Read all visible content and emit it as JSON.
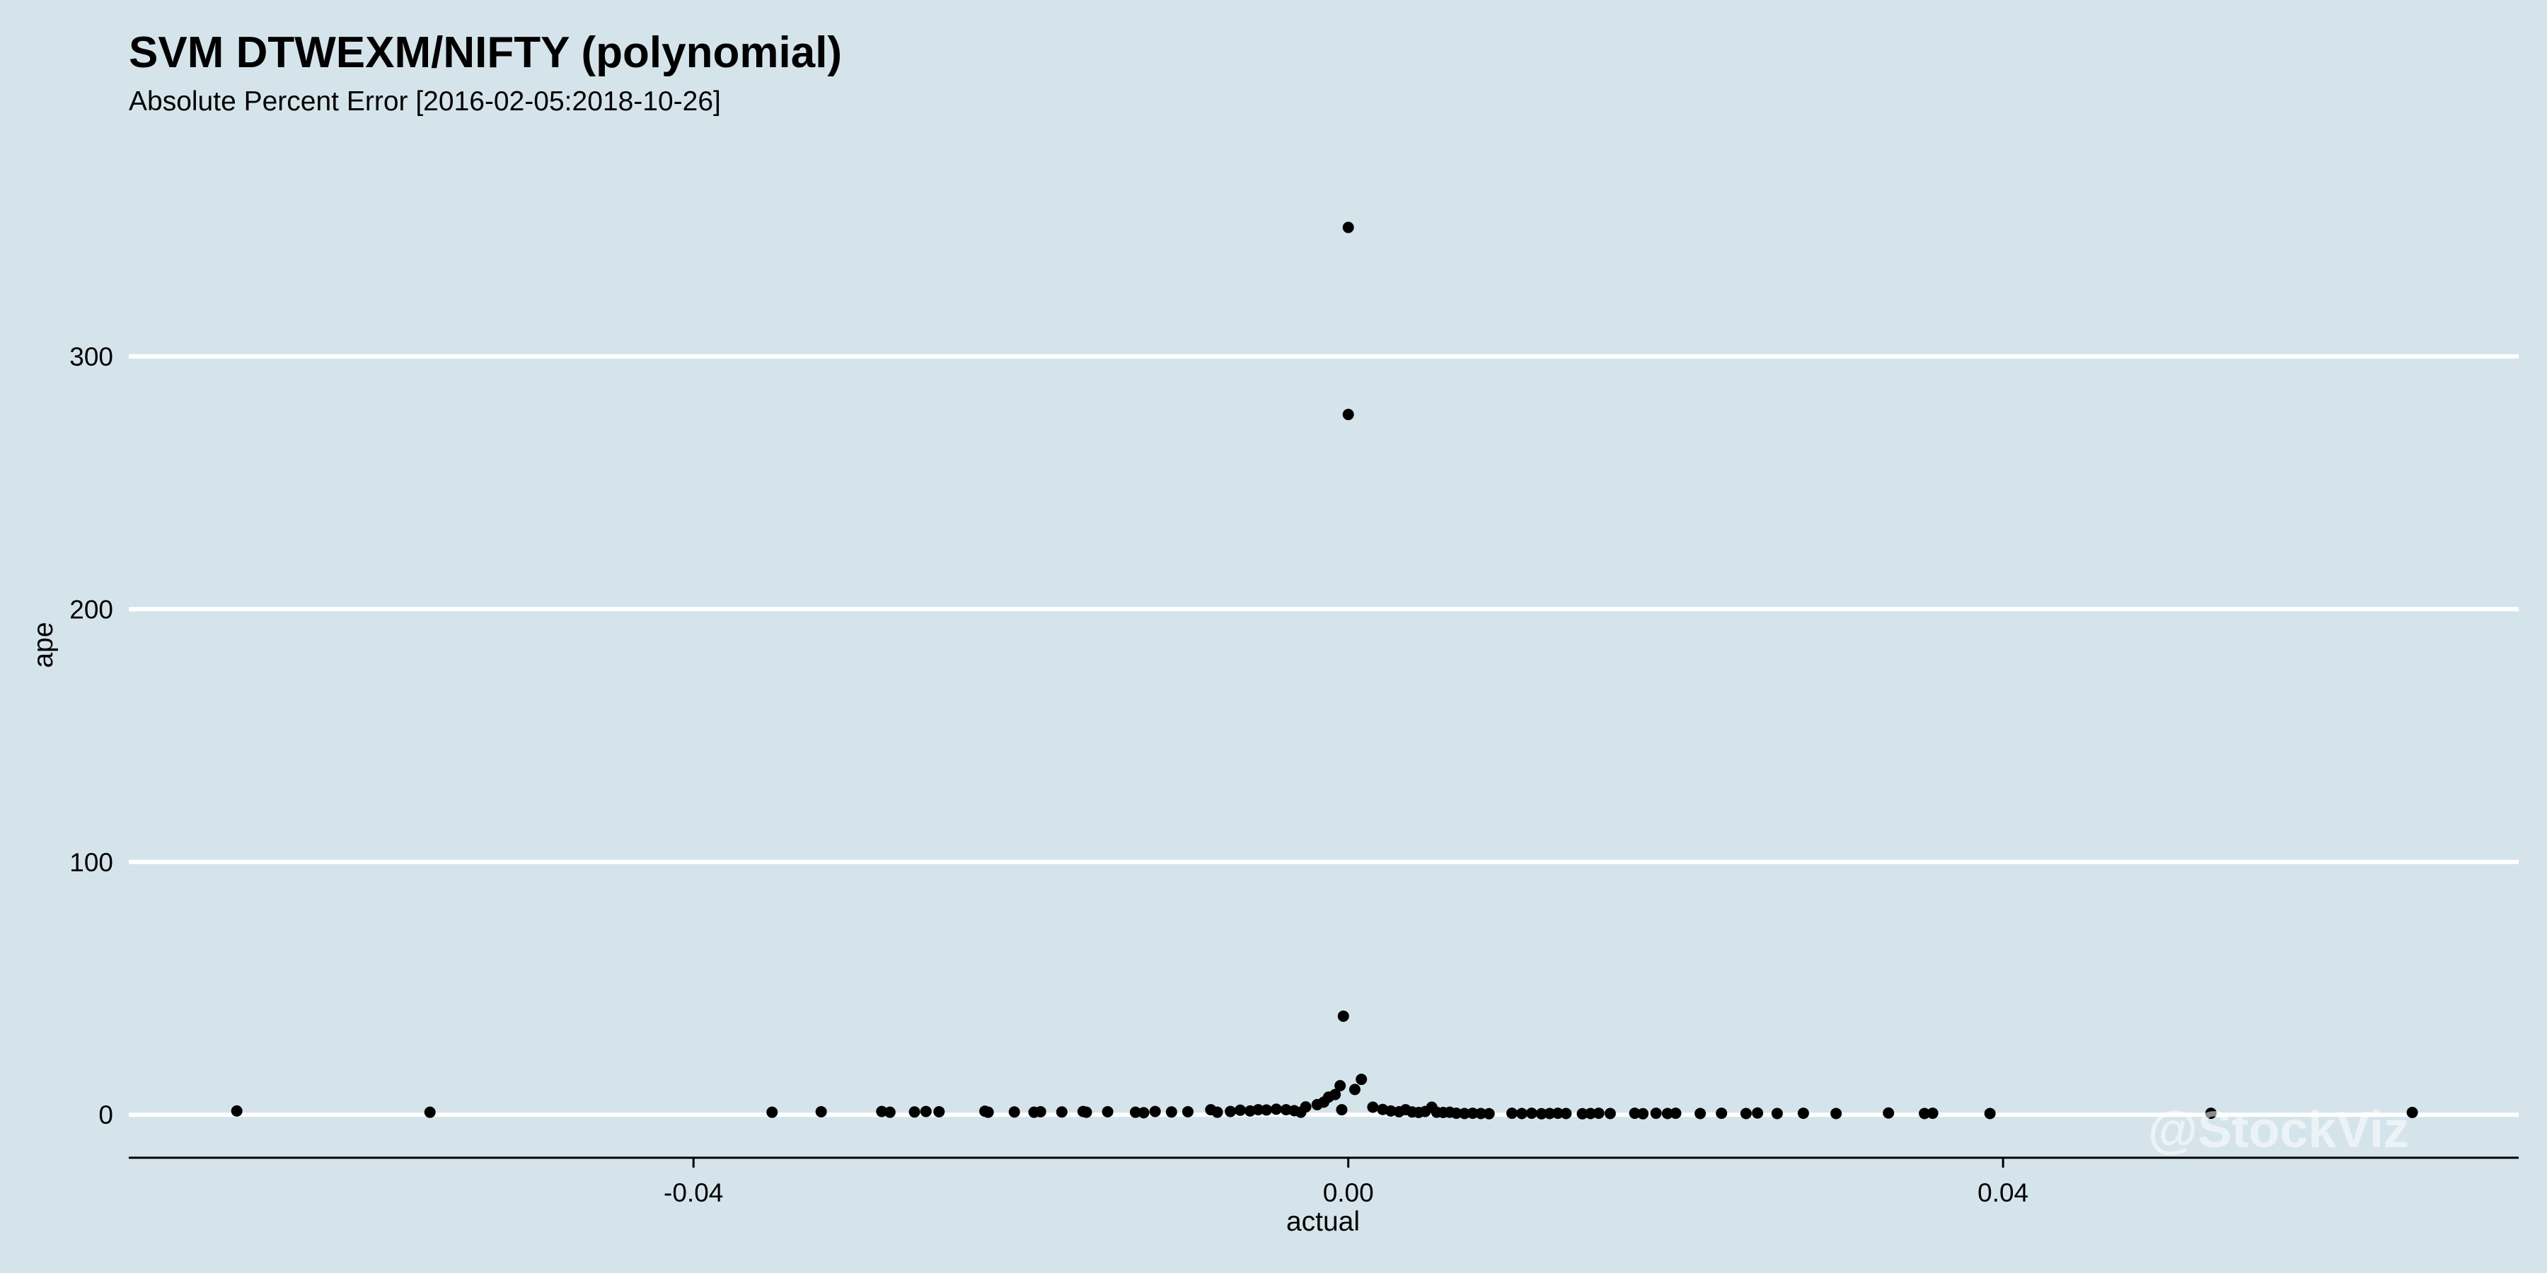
{
  "chart_data": {
    "type": "scatter",
    "title": "SVM DTWEXM/NIFTY (polynomial)",
    "subtitle": "Absolute Percent Error [2016-02-05:2018-10-26]",
    "xlabel": "actual",
    "ylabel": "ape",
    "xlim": [
      -0.0745,
      0.0715
    ],
    "ylim": [
      -17,
      385
    ],
    "x_ticks": [
      -0.04,
      0.0,
      0.04
    ],
    "x_tick_labels": [
      "-0.04",
      "0.00",
      "0.04"
    ],
    "y_ticks": [
      0,
      100,
      200,
      300
    ],
    "y_tick_labels": [
      "0",
      "100",
      "200",
      "300"
    ],
    "grid": "horizontal",
    "point_color": "#000000",
    "watermark": "@StockViz",
    "points": [
      {
        "x": -0.0679,
        "y": 1.5
      },
      {
        "x": -0.0561,
        "y": 1.0
      },
      {
        "x": -0.0352,
        "y": 1.0
      },
      {
        "x": -0.0322,
        "y": 1.2
      },
      {
        "x": -0.0285,
        "y": 1.3
      },
      {
        "x": -0.028,
        "y": 1.0
      },
      {
        "x": -0.0265,
        "y": 1.1
      },
      {
        "x": -0.0258,
        "y": 1.3
      },
      {
        "x": -0.025,
        "y": 1.2
      },
      {
        "x": -0.0222,
        "y": 1.4
      },
      {
        "x": -0.022,
        "y": 1.0
      },
      {
        "x": -0.0204,
        "y": 1.1
      },
      {
        "x": -0.0192,
        "y": 1.0
      },
      {
        "x": -0.0188,
        "y": 1.2
      },
      {
        "x": -0.0175,
        "y": 1.1
      },
      {
        "x": -0.0162,
        "y": 1.3
      },
      {
        "x": -0.016,
        "y": 1.0
      },
      {
        "x": -0.0147,
        "y": 1.2
      },
      {
        "x": -0.013,
        "y": 1.0
      },
      {
        "x": -0.0125,
        "y": 0.8
      },
      {
        "x": -0.0118,
        "y": 1.3
      },
      {
        "x": -0.0108,
        "y": 1.1
      },
      {
        "x": -0.0098,
        "y": 1.2
      },
      {
        "x": -0.0084,
        "y": 2.0
      },
      {
        "x": -0.008,
        "y": 1.0
      },
      {
        "x": -0.0072,
        "y": 1.3
      },
      {
        "x": -0.0066,
        "y": 1.8
      },
      {
        "x": -0.006,
        "y": 1.5
      },
      {
        "x": -0.0055,
        "y": 2.0
      },
      {
        "x": -0.005,
        "y": 1.9
      },
      {
        "x": -0.0044,
        "y": 2.2
      },
      {
        "x": -0.0038,
        "y": 2.0
      },
      {
        "x": -0.0033,
        "y": 1.6
      },
      {
        "x": -0.0029,
        "y": 1.0
      },
      {
        "x": -0.0026,
        "y": 3.1
      },
      {
        "x": -0.0019,
        "y": 4.0
      },
      {
        "x": -0.0015,
        "y": 5.0
      },
      {
        "x": -0.0012,
        "y": 7.0
      },
      {
        "x": -0.0008,
        "y": 8.0
      },
      {
        "x": -0.0005,
        "y": 11.5
      },
      {
        "x": -0.0004,
        "y": 2.0
      },
      {
        "x": -0.0003,
        "y": 39.0
      },
      {
        "x": 0.0,
        "y": 351.0
      },
      {
        "x": 0.0,
        "y": 277.0
      },
      {
        "x": 0.0004,
        "y": 10.0
      },
      {
        "x": 0.0008,
        "y": 14.0
      },
      {
        "x": 0.0015,
        "y": 3.0
      },
      {
        "x": 0.0021,
        "y": 2.1
      },
      {
        "x": 0.0026,
        "y": 1.5
      },
      {
        "x": 0.0031,
        "y": 1.2
      },
      {
        "x": 0.0035,
        "y": 2.0
      },
      {
        "x": 0.0039,
        "y": 1.1
      },
      {
        "x": 0.0043,
        "y": 0.9
      },
      {
        "x": 0.0047,
        "y": 1.3
      },
      {
        "x": 0.0051,
        "y": 3.0
      },
      {
        "x": 0.0054,
        "y": 1.0
      },
      {
        "x": 0.0058,
        "y": 0.9
      },
      {
        "x": 0.0062,
        "y": 1.0
      },
      {
        "x": 0.0066,
        "y": 0.6
      },
      {
        "x": 0.0071,
        "y": 0.5
      },
      {
        "x": 0.0076,
        "y": 0.6
      },
      {
        "x": 0.0081,
        "y": 0.5
      },
      {
        "x": 0.0086,
        "y": 0.4
      },
      {
        "x": 0.01,
        "y": 0.6
      },
      {
        "x": 0.0106,
        "y": 0.5
      },
      {
        "x": 0.0112,
        "y": 0.6
      },
      {
        "x": 0.0118,
        "y": 0.4
      },
      {
        "x": 0.0123,
        "y": 0.5
      },
      {
        "x": 0.0128,
        "y": 0.6
      },
      {
        "x": 0.0133,
        "y": 0.5
      },
      {
        "x": 0.0143,
        "y": 0.4
      },
      {
        "x": 0.0148,
        "y": 0.5
      },
      {
        "x": 0.0153,
        "y": 0.6
      },
      {
        "x": 0.016,
        "y": 0.5
      },
      {
        "x": 0.0175,
        "y": 0.6
      },
      {
        "x": 0.018,
        "y": 0.4
      },
      {
        "x": 0.0188,
        "y": 0.6
      },
      {
        "x": 0.0195,
        "y": 0.5
      },
      {
        "x": 0.02,
        "y": 0.6
      },
      {
        "x": 0.0215,
        "y": 0.5
      },
      {
        "x": 0.0228,
        "y": 0.6
      },
      {
        "x": 0.0243,
        "y": 0.5
      },
      {
        "x": 0.025,
        "y": 0.7
      },
      {
        "x": 0.0262,
        "y": 0.5
      },
      {
        "x": 0.0278,
        "y": 0.6
      },
      {
        "x": 0.0298,
        "y": 0.5
      },
      {
        "x": 0.033,
        "y": 0.7
      },
      {
        "x": 0.0352,
        "y": 0.5
      },
      {
        "x": 0.0357,
        "y": 0.6
      },
      {
        "x": 0.0392,
        "y": 0.5
      },
      {
        "x": 0.0527,
        "y": 0.6
      },
      {
        "x": 0.065,
        "y": 0.9
      }
    ]
  }
}
